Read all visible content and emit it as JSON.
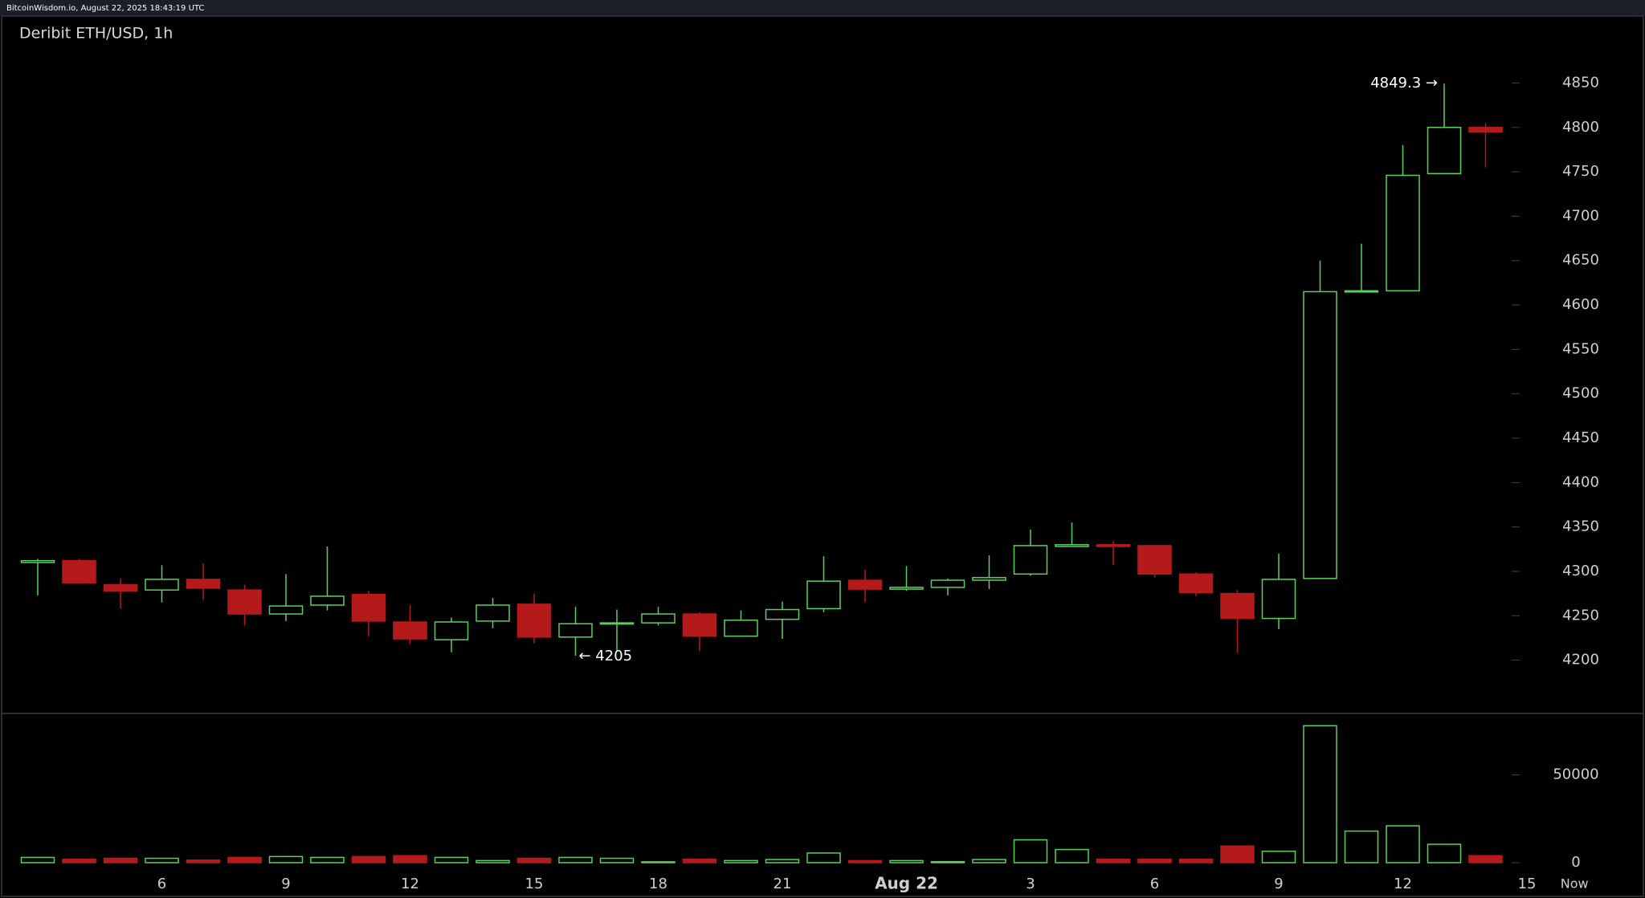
{
  "header": "BitcoinWisdom.io, August 22, 2025 18:43:19 UTC",
  "chart_data": {
    "type": "candlestick",
    "title": "Deribit ETH/USD, 1h",
    "categories": [
      null,
      null,
      null,
      "6",
      null,
      null,
      "9",
      null,
      null,
      "12",
      null,
      null,
      "15",
      null,
      null,
      "18",
      null,
      null,
      "21",
      null,
      null,
      "Aug 22",
      null,
      null,
      "3",
      null,
      null,
      "6",
      null,
      null,
      "9",
      null,
      null,
      "12",
      null,
      null
    ],
    "trailing_labels": [
      "15",
      "Now"
    ],
    "open": [
      4310,
      4312,
      4285,
      4279,
      4291,
      4279,
      4252,
      4262,
      4274,
      4243,
      4223,
      4244,
      4263,
      4226,
      4241,
      4242,
      4252,
      4227,
      4246,
      4258,
      4290,
      4280,
      4282,
      4290,
      4297,
      4328,
      4330,
      4329,
      4297,
      4275,
      4247,
      4292,
      4615,
      4616,
      4748,
      4800
    ],
    "high": [
      4314,
      4314,
      4292,
      4307,
      4309,
      4285,
      4297,
      4328,
      4278,
      4262,
      4248,
      4270,
      4275,
      4260,
      4257,
      4260,
      4254,
      4256,
      4266,
      4317,
      4302,
      4306,
      4292,
      4318,
      4347,
      4355,
      4334,
      4330,
      4299,
      4279,
      4320,
      4650,
      4669,
      4780,
      4849.3,
      4805
    ],
    "low": [
      4273,
      4287,
      4258,
      4265,
      4268,
      4239,
      4244,
      4256,
      4227,
      4218,
      4209,
      4236,
      4219,
      4205,
      4211,
      4239,
      4210,
      4227,
      4224,
      4254,
      4265,
      4278,
      4273,
      4280,
      4295,
      4328,
      4307,
      4293,
      4272,
      4208,
      4235,
      4292,
      4615,
      4616,
      4748,
      4755
    ],
    "close": [
      4312,
      4287,
      4278,
      4291,
      4281,
      4252,
      4261,
      4272,
      4244,
      4224,
      4243,
      4262,
      4226,
      4241,
      4242,
      4252,
      4227,
      4245,
      4257,
      4289,
      4280,
      4282,
      4290,
      4293,
      4329,
      4330,
      4328,
      4297,
      4276,
      4247,
      4291,
      4615,
      4616,
      4746,
      4800,
      4795
    ],
    "volume": [
      3000,
      2000,
      2500,
      2500,
      1500,
      3000,
      3500,
      3000,
      3500,
      4000,
      3000,
      1200,
      2500,
      3000,
      2500,
      500,
      2000,
      1200,
      1800,
      5500,
      1200,
      1200,
      600,
      1800,
      13000,
      7500,
      2000,
      2000,
      2000,
      9500,
      6500,
      78000,
      18000,
      21000,
      10500,
      4000
    ],
    "up_color": "#5ccf5c",
    "down_color": "#b51a1a",
    "ylim": [
      4140,
      4920
    ],
    "yticks": [
      4200,
      4250,
      4300,
      4350,
      4400,
      4450,
      4500,
      4550,
      4600,
      4650,
      4700,
      4750,
      4800,
      4850
    ],
    "volume_ylim": [
      0,
      85000
    ],
    "volume_yticks": [
      0,
      50000
    ],
    "annotations": [
      {
        "label": "4849.3 →",
        "value": 4849.3,
        "of": "high"
      },
      {
        "label": "← 4205",
        "value": 4205,
        "of": "low"
      }
    ]
  }
}
